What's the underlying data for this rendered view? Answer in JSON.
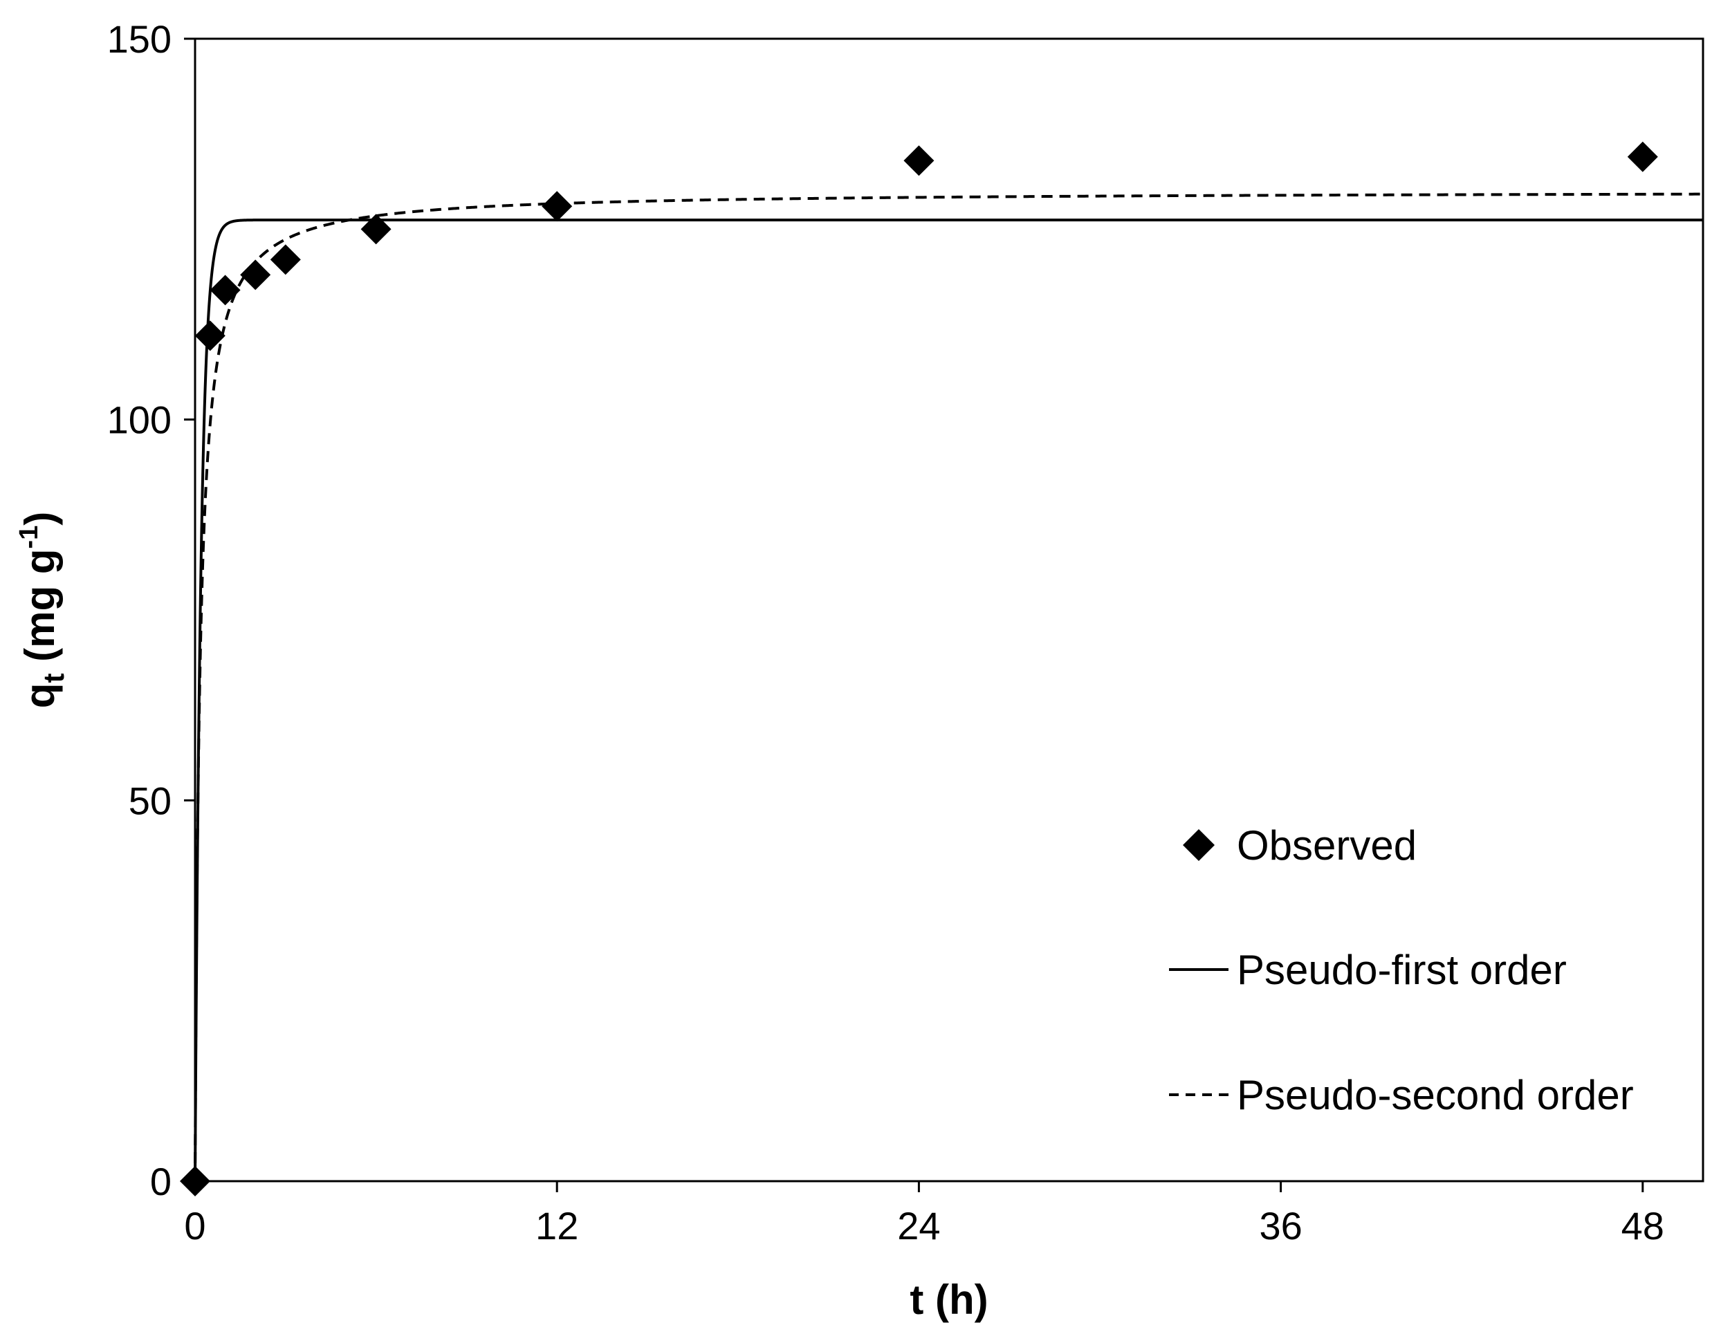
{
  "chart_data": {
    "type": "scatter",
    "title": "",
    "xlabel": "t (h)",
    "ylabel": {
      "main": "q",
      "sub": "t",
      "unit_open": " (mg g",
      "sup": "-1",
      "unit_close": ")"
    },
    "xlim": [
      0,
      50
    ],
    "ylim": [
      0,
      150
    ],
    "x_ticks": [
      0,
      12,
      24,
      36,
      48
    ],
    "y_ticks": [
      0,
      50,
      100,
      150
    ],
    "grid": false,
    "legend_position": "bottom-right",
    "series": [
      {
        "name": "Observed",
        "kind": "scatter",
        "marker": "diamond",
        "color": "#000000",
        "x": [
          0,
          0.5,
          1,
          2,
          3,
          6,
          12,
          24,
          48
        ],
        "y": [
          0,
          111,
          117,
          119,
          121,
          125,
          128,
          134,
          134.5
        ]
      },
      {
        "name": "Pseudo-first order",
        "kind": "line",
        "style": "solid",
        "color": "#000000",
        "qe": 126.2,
        "k": 5.2
      },
      {
        "name": "Pseudo-second order",
        "kind": "line",
        "style": "dashed",
        "color": "#000000",
        "qe": 130,
        "k": 0.05
      }
    ]
  }
}
